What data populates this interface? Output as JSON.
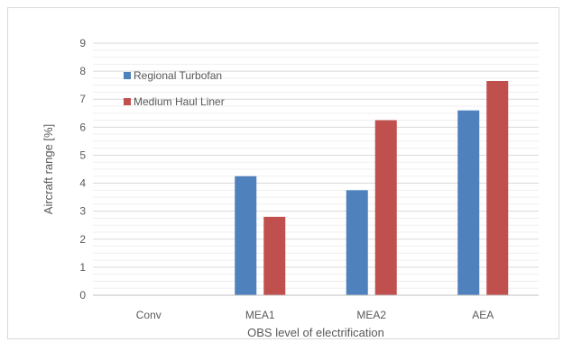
{
  "chart_data": {
    "type": "bar",
    "categories": [
      "Conv",
      "MEA1",
      "MEA2",
      "AEA"
    ],
    "series": [
      {
        "name": "Regional Turbofan",
        "values": [
          0,
          4.25,
          3.75,
          6.6
        ],
        "color": "#4f81bd"
      },
      {
        "name": "Medium Haul Liner",
        "values": [
          0,
          2.8,
          6.25,
          7.65
        ],
        "color": "#c0504d"
      }
    ],
    "xlabel": "OBS level of electrification",
    "ylabel": "Aircraft range [%]",
    "ylim": [
      0,
      9
    ],
    "yticks": [
      "0",
      "1",
      "2",
      "3",
      "4",
      "5",
      "6",
      "7",
      "8",
      "9"
    ],
    "grid": true,
    "legend_position": "top-left"
  }
}
